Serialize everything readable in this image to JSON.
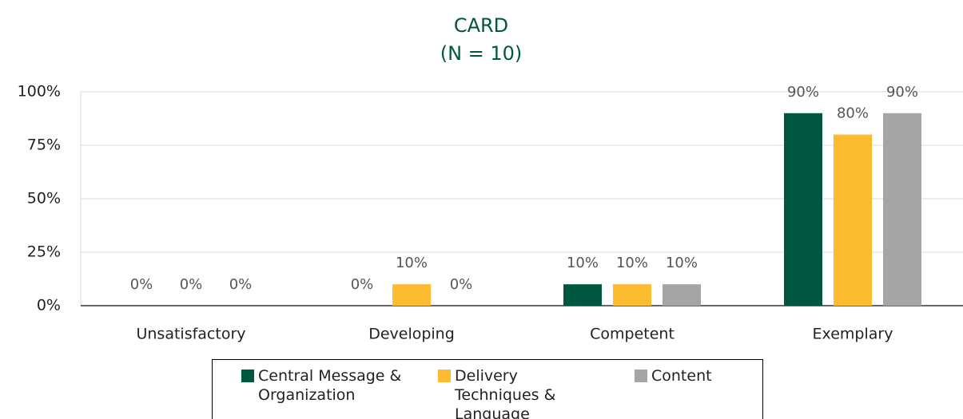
{
  "chart_data": {
    "type": "bar",
    "title": "CARD",
    "subtitle": "(N = 10)",
    "categories": [
      "Unsatisfactory",
      "Developing",
      "Competent",
      "Exemplary"
    ],
    "series": [
      {
        "name": "Central Message & Organization",
        "color": "#00573f",
        "values": [
          0,
          0,
          10,
          90
        ],
        "value_labels": [
          "0%",
          "0%",
          "10%",
          "90%"
        ]
      },
      {
        "name": "Delivery Techniques & Language",
        "color": "#fdbb30",
        "values": [
          0,
          10,
          10,
          80
        ],
        "value_labels": [
          "0%",
          "10%",
          "10%",
          "80%"
        ]
      },
      {
        "name": "Content",
        "color": "#a5a5a5",
        "values": [
          0,
          0,
          10,
          90
        ],
        "value_labels": [
          "0%",
          "0%",
          "10%",
          "90%"
        ]
      }
    ],
    "ylim": [
      0,
      100
    ],
    "yticks": [
      {
        "value": 0,
        "label": "0%"
      },
      {
        "value": 25,
        "label": "25%"
      },
      {
        "value": 50,
        "label": "50%"
      },
      {
        "value": 75,
        "label": "75%"
      },
      {
        "value": 100,
        "label": "100%"
      }
    ],
    "grid": true,
    "legend": "bottom"
  }
}
